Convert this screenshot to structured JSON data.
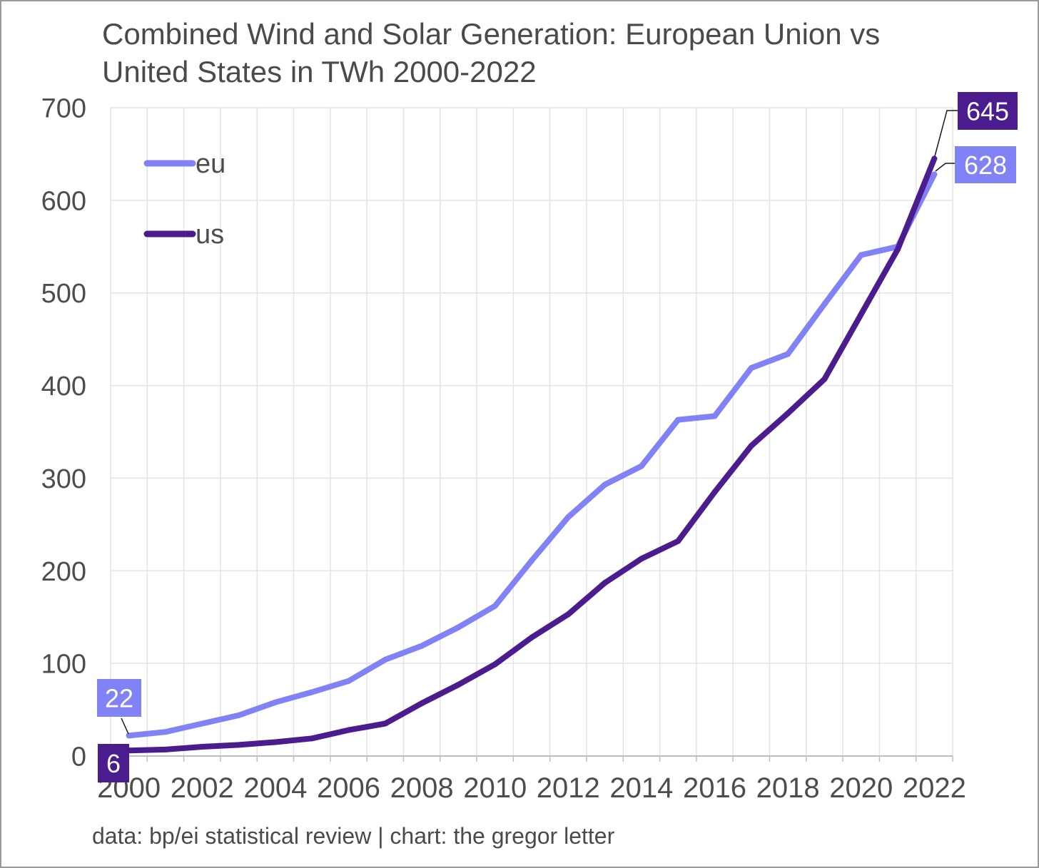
{
  "colors": {
    "text": "#4d4d4d",
    "grid": "#e4e4e4",
    "axis": "#bdbdbd",
    "frame": "#9a9a9a",
    "leader": "#1a1a1a",
    "label_text": "#ffffff"
  },
  "chart_data": {
    "type": "line",
    "title": "Combined Wind and Solar Generation: European Union vs United States in TWh 2000-2022",
    "source_note": "data: bp/ei statistical review | chart: the gregor letter",
    "x": [
      2000,
      2001,
      2002,
      2003,
      2004,
      2005,
      2006,
      2007,
      2008,
      2009,
      2010,
      2011,
      2012,
      2013,
      2014,
      2015,
      2016,
      2017,
      2018,
      2019,
      2020,
      2021,
      2022
    ],
    "x_tick_labels": [
      "2000",
      "2002",
      "2004",
      "2006",
      "2008",
      "2010",
      "2012",
      "2014",
      "2016",
      "2018",
      "2020",
      "2022"
    ],
    "y_ticks": [
      0,
      100,
      200,
      300,
      400,
      500,
      600,
      700
    ],
    "ylim": [
      0,
      700
    ],
    "grid": true,
    "legend": "top-left",
    "series": [
      {
        "name": "eu",
        "color": "#8082f6",
        "values": [
          22,
          26,
          35,
          44,
          58,
          69,
          81,
          104,
          119,
          139,
          162,
          211,
          258,
          293,
          313,
          363,
          367,
          419,
          434,
          488,
          541,
          550,
          628
        ]
      },
      {
        "name": "us",
        "color": "#4b1c8e",
        "values": [
          6,
          7,
          10,
          12,
          15,
          19,
          28,
          35,
          57,
          77,
          99,
          128,
          153,
          187,
          213,
          232,
          285,
          335,
          370,
          407,
          477,
          547,
          645
        ]
      }
    ],
    "data_labels": [
      {
        "series": "eu",
        "x": 2000,
        "text": "22"
      },
      {
        "series": "us",
        "x": 2000,
        "text": "6"
      },
      {
        "series": "us",
        "x": 2022,
        "text": "645"
      },
      {
        "series": "eu",
        "x": 2022,
        "text": "628"
      }
    ]
  }
}
